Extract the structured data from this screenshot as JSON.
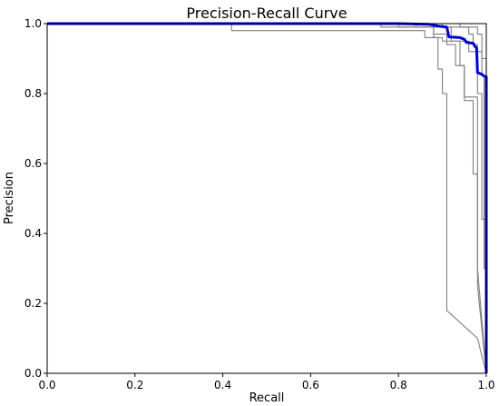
{
  "chart_data": {
    "type": "line",
    "title": "Precision-Recall Curve",
    "xlabel": "Recall",
    "ylabel": "Precision",
    "xlim": [
      0,
      1
    ],
    "ylim": [
      0,
      1
    ],
    "x_ticks": [
      0.0,
      0.2,
      0.4,
      0.6,
      0.8,
      1.0
    ],
    "y_ticks": [
      0.0,
      0.2,
      0.4,
      0.6,
      0.8,
      1.0
    ],
    "x_tick_labels": [
      "0.0",
      "0.2",
      "0.4",
      "0.6",
      "0.8",
      "1.0"
    ],
    "y_tick_labels": [
      "0.0",
      "0.2",
      "0.4",
      "0.6",
      "0.8",
      "1.0"
    ],
    "grid": false,
    "legend": "none",
    "series": [
      {
        "color": "#7f7f7f",
        "points": [
          [
            0,
            1
          ],
          [
            0.42,
            1
          ],
          [
            0.42,
            0.98
          ],
          [
            0.86,
            0.98
          ],
          [
            0.86,
            0.96
          ],
          [
            0.9,
            0.96
          ],
          [
            0.9,
            0.95
          ],
          [
            0.96,
            0.95
          ],
          [
            0.96,
            0.92
          ],
          [
            0.99,
            0.92
          ],
          [
            0.99,
            0.9
          ],
          [
            1,
            0.9
          ],
          [
            1,
            0
          ]
        ]
      },
      {
        "color": "#7f7f7f",
        "points": [
          [
            0,
            1
          ],
          [
            0.76,
            1
          ],
          [
            0.76,
            0.99
          ],
          [
            0.88,
            0.99
          ],
          [
            0.88,
            0.97
          ],
          [
            0.91,
            0.97
          ],
          [
            0.91,
            0.94
          ],
          [
            0.93,
            0.94
          ],
          [
            0.93,
            0.88
          ],
          [
            0.95,
            0.88
          ],
          [
            0.95,
            0.79
          ],
          [
            0.98,
            0.79
          ],
          [
            0.98,
            0.3
          ],
          [
            1,
            0
          ]
        ]
      },
      {
        "color": "#7f7f7f",
        "points": [
          [
            0,
            1
          ],
          [
            0.8,
            1
          ],
          [
            0.8,
            0.99
          ],
          [
            0.92,
            0.99
          ],
          [
            0.92,
            0.95
          ],
          [
            0.94,
            0.95
          ],
          [
            0.94,
            0.88
          ],
          [
            0.95,
            0.88
          ],
          [
            0.95,
            0.78
          ],
          [
            0.97,
            0.78
          ],
          [
            0.97,
            0.57
          ],
          [
            0.98,
            0.57
          ],
          [
            0.98,
            0.25
          ],
          [
            1,
            0
          ]
        ]
      },
      {
        "color": "#7f7f7f",
        "points": [
          [
            0,
            1
          ],
          [
            0.84,
            1
          ],
          [
            0.84,
            0.99
          ],
          [
            0.88,
            0.99
          ],
          [
            0.88,
            0.96
          ],
          [
            0.89,
            0.96
          ],
          [
            0.89,
            0.87
          ],
          [
            0.9,
            0.87
          ],
          [
            0.9,
            0.8
          ],
          [
            0.91,
            0.8
          ],
          [
            0.91,
            0.18
          ],
          [
            0.98,
            0.1
          ],
          [
            1,
            0
          ]
        ]
      },
      {
        "color": "#7f7f7f",
        "points": [
          [
            0,
            1
          ],
          [
            0.9,
            1
          ],
          [
            0.9,
            0.99
          ],
          [
            0.96,
            0.99
          ],
          [
            0.96,
            0.97
          ],
          [
            0.97,
            0.97
          ],
          [
            0.97,
            0.94
          ],
          [
            0.98,
            0.94
          ],
          [
            0.98,
            0.8
          ],
          [
            0.99,
            0.8
          ],
          [
            0.99,
            0.44
          ],
          [
            1,
            0.44
          ],
          [
            1,
            0
          ]
        ]
      },
      {
        "color": "#7f7f7f",
        "points": [
          [
            0,
            1
          ],
          [
            0.94,
            1
          ],
          [
            0.94,
            0.99
          ],
          [
            0.98,
            0.99
          ],
          [
            0.98,
            0.97
          ],
          [
            0.99,
            0.97
          ],
          [
            0.99,
            0.85
          ],
          [
            0.995,
            0.85
          ],
          [
            0.995,
            0.3
          ],
          [
            1,
            0.3
          ],
          [
            1,
            0
          ]
        ]
      },
      {
        "color": "#0000d4",
        "thick": true,
        "points": [
          [
            0,
            1
          ],
          [
            0.8,
            1
          ],
          [
            0.87,
            0.998
          ],
          [
            0.89,
            0.993
          ],
          [
            0.91,
            0.99
          ],
          [
            0.915,
            0.962
          ],
          [
            0.94,
            0.96
          ],
          [
            0.95,
            0.955
          ],
          [
            0.955,
            0.946
          ],
          [
            0.97,
            0.944
          ],
          [
            0.974,
            0.935
          ],
          [
            0.978,
            0.93
          ],
          [
            0.98,
            0.86
          ],
          [
            0.99,
            0.855
          ],
          [
            0.995,
            0.85
          ],
          [
            1,
            0.848
          ],
          [
            1,
            0
          ]
        ]
      }
    ]
  }
}
